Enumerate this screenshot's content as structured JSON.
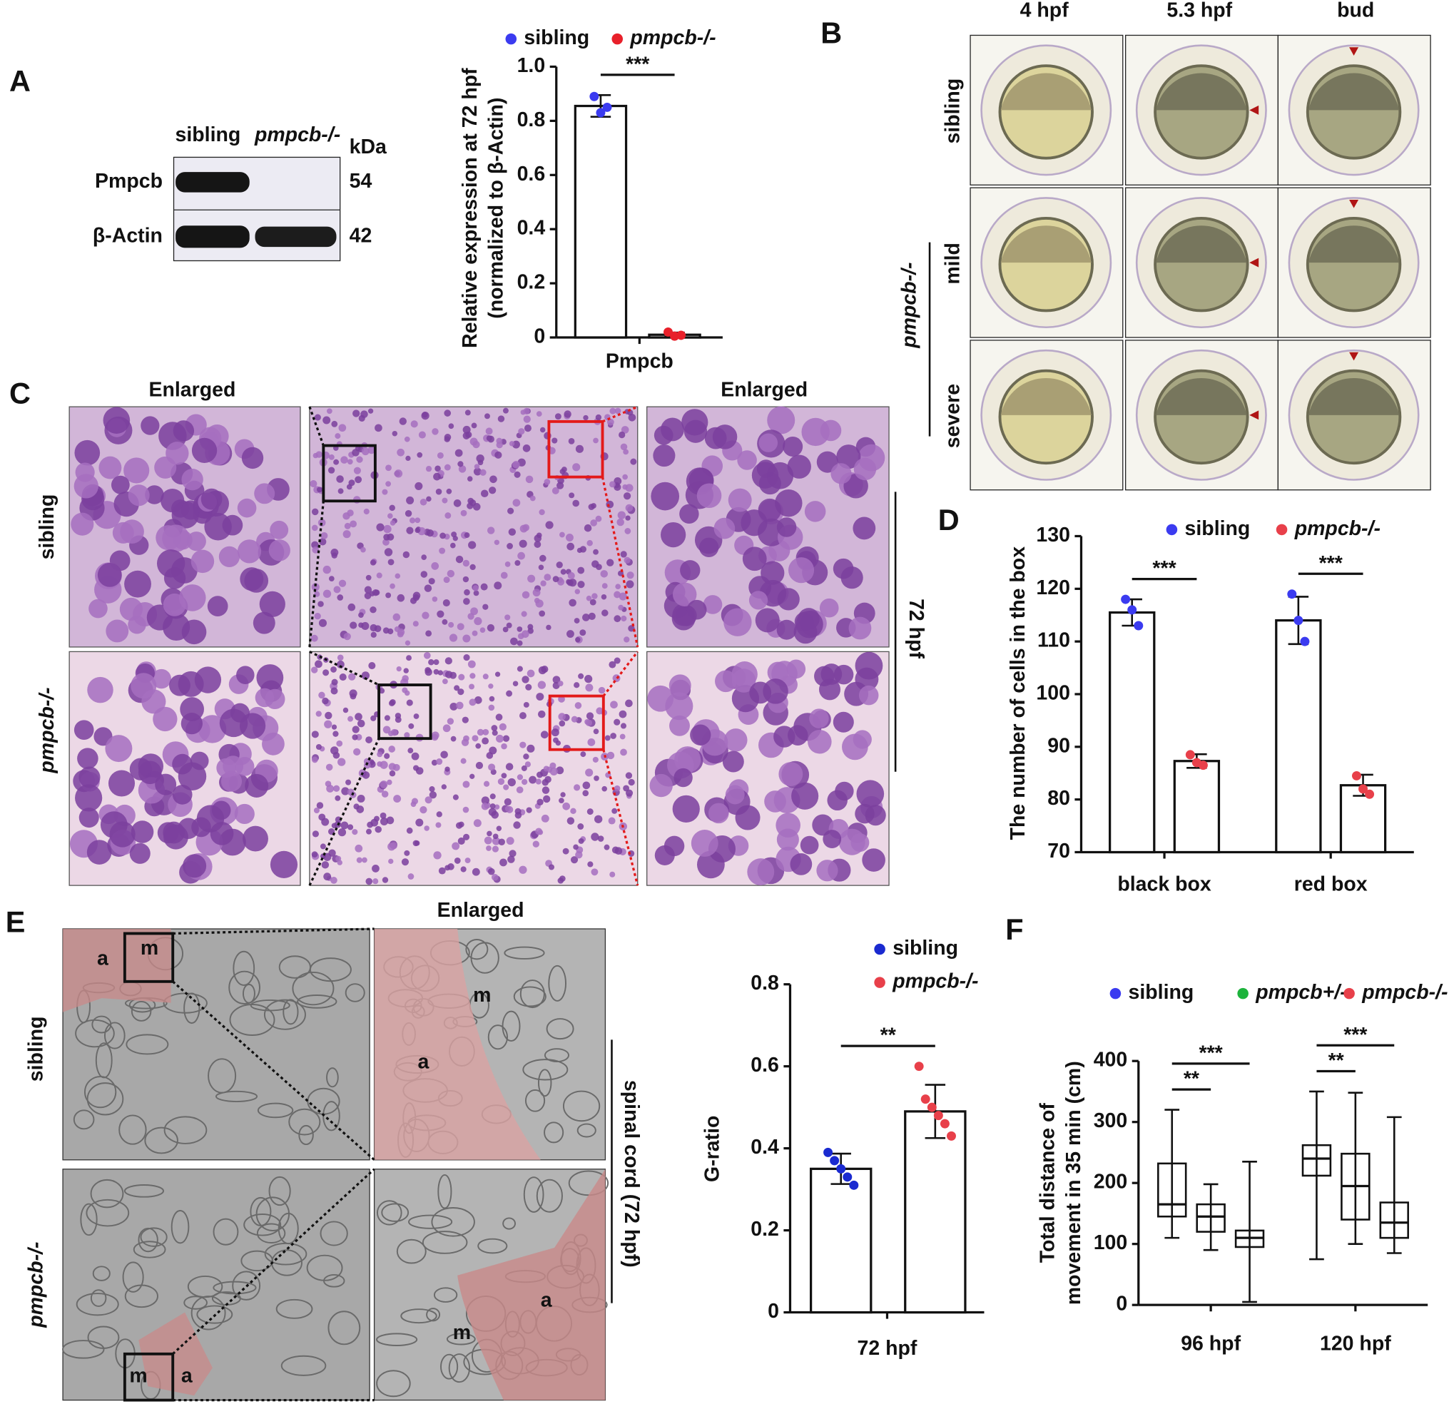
{
  "panel_labels": [
    "A",
    "B",
    "C",
    "D",
    "E",
    "F"
  ],
  "western_blot": {
    "lanes": [
      "sibling",
      "pmpcb-/-"
    ],
    "unit": "kDa",
    "bands": [
      {
        "name": "Pmpcb",
        "size": "54"
      },
      {
        "name": "β-Actin",
        "size": "42"
      }
    ]
  },
  "embryo_images": {
    "columns": [
      "4 hpf",
      "5.3 hpf",
      "bud"
    ],
    "rows": [
      "sibling",
      "mild",
      "severe"
    ],
    "group": "pmpcb-/-"
  },
  "histology": {
    "headers": [
      "Enlarged",
      "Enlarged"
    ],
    "rows": [
      "sibling",
      "pmpcb-/-"
    ],
    "stage": "72 hpf"
  },
  "em_images": {
    "header": "Enlarged",
    "rows": [
      "sibling",
      "pmpcb-/-"
    ],
    "region": "spinal cord (72 hpf)",
    "labels": [
      "a",
      "m",
      "a",
      "m",
      "m",
      "a",
      "m",
      "a"
    ]
  },
  "chart_data": [
    {
      "type": "bar",
      "ylabel": [
        "Relative expression at 72 hpf",
        "(normalized to β-Actin)"
      ],
      "categories": [
        "Pmpcb"
      ],
      "ylim": [
        0,
        1
      ],
      "yticks": [
        0,
        0.2,
        0.4,
        0.6,
        0.8,
        {
          "value": 1,
          "label": "1.0"
        }
      ],
      "series": [
        {
          "name": "sibling",
          "color": "#3b3bf0",
          "values": [
            0.855
          ],
          "errors": [
            0.04
          ],
          "points": [
            [
              0.89,
              0.83,
              0.85
            ]
          ]
        },
        {
          "name": "pmpcb-/-",
          "color": "#e8202a",
          "values": [
            0.01
          ],
          "errors": [
            0.008
          ],
          "points": [
            [
              0.02,
              0.005,
              0.008
            ]
          ]
        }
      ],
      "annotations": [
        {
          "text": "***",
          "category": 0,
          "series": [
            0,
            1
          ]
        }
      ]
    },
    {
      "type": "bar",
      "ylabel": [
        "The number of cells in the box"
      ],
      "categories": [
        "black box",
        "red box"
      ],
      "ylim": [
        70,
        130
      ],
      "yticks": [
        70,
        80,
        90,
        100,
        110,
        120,
        130
      ],
      "series": [
        {
          "name": "sibling",
          "color": "#3b3bf0",
          "values": [
            115.5,
            114
          ],
          "errors": [
            2.5,
            4.5
          ],
          "points": [
            [
              118,
              116,
              113
            ],
            [
              119,
              114,
              110
            ]
          ]
        },
        {
          "name": "pmpcb-/-",
          "color": "#e8404a",
          "values": [
            87.3,
            82.7
          ],
          "errors": [
            1.3,
            2
          ],
          "points": [
            [
              88.5,
              87,
              86.5
            ],
            [
              84.5,
              82,
              81
            ]
          ]
        }
      ],
      "annotations": [
        {
          "text": "***",
          "category": 0,
          "series": [
            0,
            1
          ]
        },
        {
          "text": "***",
          "category": 1,
          "series": [
            0,
            1
          ]
        }
      ]
    },
    {
      "type": "bar",
      "ylabel": [
        "G-ratio"
      ],
      "categories": [
        "72 hpf"
      ],
      "ylim": [
        0,
        0.8
      ],
      "yticks": [
        0,
        0.2,
        0.4,
        0.6,
        0.8
      ],
      "series": [
        {
          "name": "sibling",
          "color": "#1a2ad0",
          "values": [
            0.35
          ],
          "errors": [
            0.037
          ],
          "points": [
            [
              0.39,
              0.37,
              0.35,
              0.33,
              0.31
            ]
          ]
        },
        {
          "name": "pmpcb-/-",
          "color": "#e8404a",
          "values": [
            0.49
          ],
          "errors": [
            0.065
          ],
          "points": [
            [
              0.6,
              0.52,
              0.5,
              0.48,
              0.46,
              0.43
            ]
          ]
        }
      ],
      "annotations": [
        {
          "text": "**",
          "category": 0,
          "series": [
            0,
            1
          ]
        }
      ]
    },
    {
      "type": "box",
      "ylabel": [
        "Total distance of",
        "movement in 35 min (cm)"
      ],
      "categories": [
        "96 hpf",
        "120 hpf"
      ],
      "ylim": [
        0,
        400
      ],
      "yticks": [
        0,
        100,
        200,
        300,
        400
      ],
      "series": [
        {
          "name": "sibling",
          "color": "#3b3bf0",
          "boxes": [
            {
              "min": 110,
              "q1": 145,
              "median": 165,
              "q3": 232,
              "max": 320
            },
            {
              "min": 75,
              "q1": 212,
              "median": 240,
              "q3": 262,
              "max": 350
            }
          ]
        },
        {
          "name": "pmpcb+/-",
          "color": "#1db33c",
          "boxes": [
            {
              "min": 90,
              "q1": 120,
              "median": 145,
              "q3": 165,
              "max": 198
            },
            {
              "min": 100,
              "q1": 140,
              "median": 195,
              "q3": 248,
              "max": 348
            }
          ]
        },
        {
          "name": "pmpcb-/-",
          "color": "#e8404a",
          "boxes": [
            {
              "min": 5,
              "q1": 95,
              "median": 110,
              "q3": 122,
              "max": 235
            },
            {
              "min": 85,
              "q1": 110,
              "median": 135,
              "q3": 168,
              "max": 308
            }
          ]
        }
      ],
      "annotations": [
        {
          "text": "**",
          "category": 0,
          "series": [
            0,
            1
          ]
        },
        {
          "text": "***",
          "category": 0,
          "series": [
            0,
            2
          ]
        },
        {
          "text": "**",
          "category": 1,
          "series": [
            0,
            1
          ]
        },
        {
          "text": "***",
          "category": 1,
          "series": [
            0,
            2
          ]
        }
      ]
    }
  ]
}
